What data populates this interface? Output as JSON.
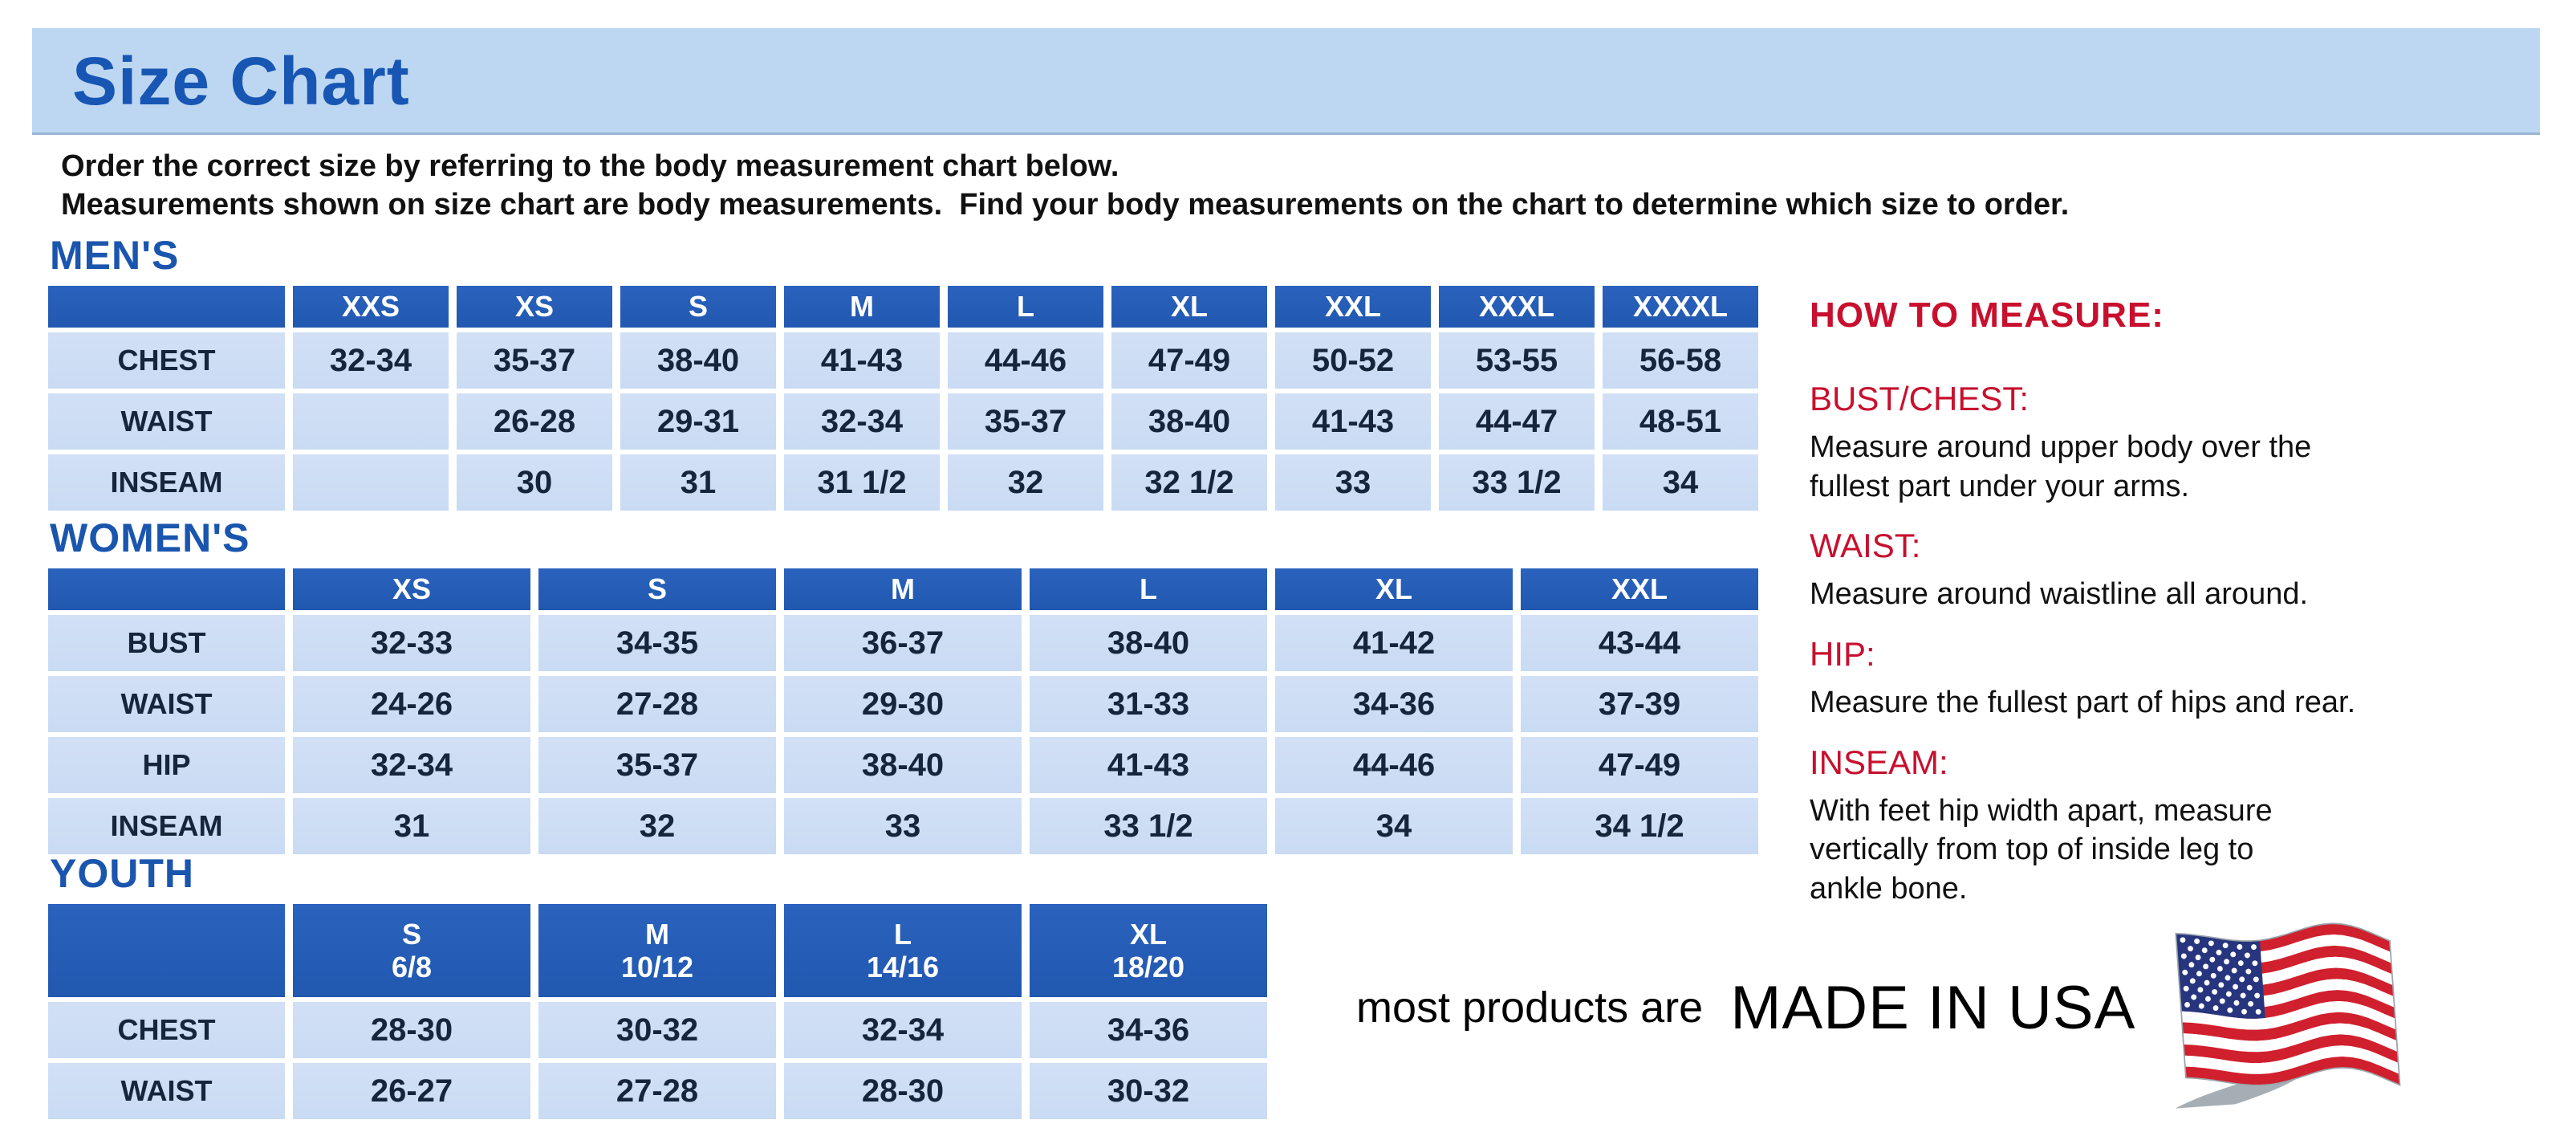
{
  "banner": {
    "title": "Size Chart"
  },
  "intro": {
    "line1": "Order the correct size by referring to the body measurement chart below.",
    "line2": "Measurements shown on size chart are body measurements.  Find your body measurements on the chart to determine which size to order."
  },
  "tables": {
    "mens": {
      "heading": "MEN'S",
      "columns": [
        "XXS",
        "XS",
        "S",
        "M",
        "L",
        "XL",
        "XXL",
        "XXXL",
        "XXXXL"
      ],
      "rows": [
        {
          "label": "CHEST",
          "values": [
            "32-34",
            "35-37",
            "38-40",
            "41-43",
            "44-46",
            "47-49",
            "50-52",
            "53-55",
            "56-58"
          ]
        },
        {
          "label": "WAIST",
          "values": [
            "",
            "26-28",
            "29-31",
            "32-34",
            "35-37",
            "38-40",
            "41-43",
            "44-47",
            "48-51"
          ]
        },
        {
          "label": "INSEAM",
          "values": [
            "",
            "30",
            "31",
            "31 1/2",
            "32",
            "32 1/2",
            "33",
            "33 1/2",
            "34"
          ]
        }
      ]
    },
    "womens": {
      "heading": "WOMEN'S",
      "columns": [
        "XS",
        "S",
        "M",
        "L",
        "XL",
        "XXL"
      ],
      "rows": [
        {
          "label": "BUST",
          "values": [
            "32-33",
            "34-35",
            "36-37",
            "38-40",
            "41-42",
            "43-44"
          ]
        },
        {
          "label": "WAIST",
          "values": [
            "24-26",
            "27-28",
            "29-30",
            "31-33",
            "34-36",
            "37-39"
          ]
        },
        {
          "label": "HIP",
          "values": [
            "32-34",
            "35-37",
            "38-40",
            "41-43",
            "44-46",
            "47-49"
          ]
        },
        {
          "label": "INSEAM",
          "values": [
            "31",
            "32",
            "33",
            "33 1/2",
            "34",
            "34 1/2"
          ]
        }
      ]
    },
    "youth": {
      "heading": "YOUTH",
      "columns": [
        "S\n6/8",
        "M\n10/12",
        "L\n14/16",
        "XL\n18/20"
      ],
      "rows": [
        {
          "label": "CHEST",
          "values": [
            "28-30",
            "30-32",
            "32-34",
            "34-36"
          ]
        },
        {
          "label": "WAIST",
          "values": [
            "26-27",
            "27-28",
            "28-30",
            "30-32"
          ]
        }
      ]
    }
  },
  "how_to_measure": {
    "heading": "HOW TO MEASURE:",
    "items": [
      {
        "term": "BUST/CHEST:",
        "desc": "Measure around upper body over the\nfullest part under your arms."
      },
      {
        "term": "WAIST:",
        "desc": "Measure around waistline all around."
      },
      {
        "term": "HIP:",
        "desc": "Measure the fullest part of hips and rear."
      },
      {
        "term": "INSEAM:",
        "desc": "With feet hip width apart, measure\nvertically from top of inside leg to\nankle bone."
      }
    ]
  },
  "made_in_usa": {
    "prefix": "most products are",
    "emphasis": "MADE IN USA"
  },
  "icons": {
    "flag": "usa-flag-icon"
  },
  "colors": {
    "banner_bg": "#bdd7f2",
    "title_blue": "#1856b4",
    "heading_blue": "#1a55ae",
    "header_cell_bg": "#2158b0",
    "cell_bg": "#c9dbf3",
    "cell_text": "#16243c",
    "red": "#c8102e",
    "text": "#111111",
    "flag_red": "#d0202e",
    "flag_blue": "#27357e"
  }
}
